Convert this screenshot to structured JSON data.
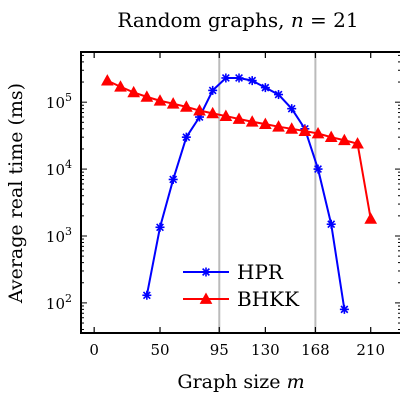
{
  "chart_data": {
    "type": "line",
    "title": "Random graphs, n = 21",
    "xlabel": "Graph size m",
    "ylabel": "Average real time (ms)",
    "xlim": [
      -10,
      233
    ],
    "ylim_log10": [
      1.55,
      5.75
    ],
    "yscale": "log",
    "x_ticks": [
      0,
      50,
      95,
      130,
      168,
      210
    ],
    "x_tick_labels": [
      "0",
      "50",
      "95",
      "130",
      "168",
      "210"
    ],
    "y_ticks": [
      100,
      1000,
      10000,
      100000
    ],
    "y_tick_labels": [
      {
        "base": "10",
        "exp": "2"
      },
      {
        "base": "10",
        "exp": "3"
      },
      {
        "base": "10",
        "exp": "4"
      },
      {
        "base": "10",
        "exp": "5"
      }
    ],
    "vertical_lines": [
      95,
      168
    ],
    "legend_position": "lower center",
    "series": [
      {
        "name": "HPR",
        "color": "#0000ff",
        "marker": "asterisk",
        "x": [
          40,
          50,
          60,
          70,
          80,
          90,
          100,
          110,
          120,
          130,
          140,
          150,
          160,
          170,
          180,
          190,
          200
        ],
        "y": [
          130,
          1350,
          7000,
          30000,
          60000,
          150000,
          230000,
          230000,
          210000,
          165000,
          130000,
          80000,
          40000,
          10000,
          1500,
          80,
          null
        ]
      },
      {
        "name": "BHKK",
        "color": "#ff0000",
        "marker": "triangle",
        "x": [
          10,
          20,
          30,
          40,
          50,
          60,
          70,
          80,
          90,
          100,
          110,
          120,
          130,
          140,
          150,
          160,
          170,
          180,
          190,
          200,
          210
        ],
        "y": [
          210000,
          170000,
          140000,
          120000,
          105000,
          95000,
          85000,
          75000,
          68000,
          62000,
          56000,
          51000,
          47000,
          43000,
          40000,
          37000,
          34000,
          30000,
          27000,
          24000,
          1800
        ]
      }
    ]
  }
}
